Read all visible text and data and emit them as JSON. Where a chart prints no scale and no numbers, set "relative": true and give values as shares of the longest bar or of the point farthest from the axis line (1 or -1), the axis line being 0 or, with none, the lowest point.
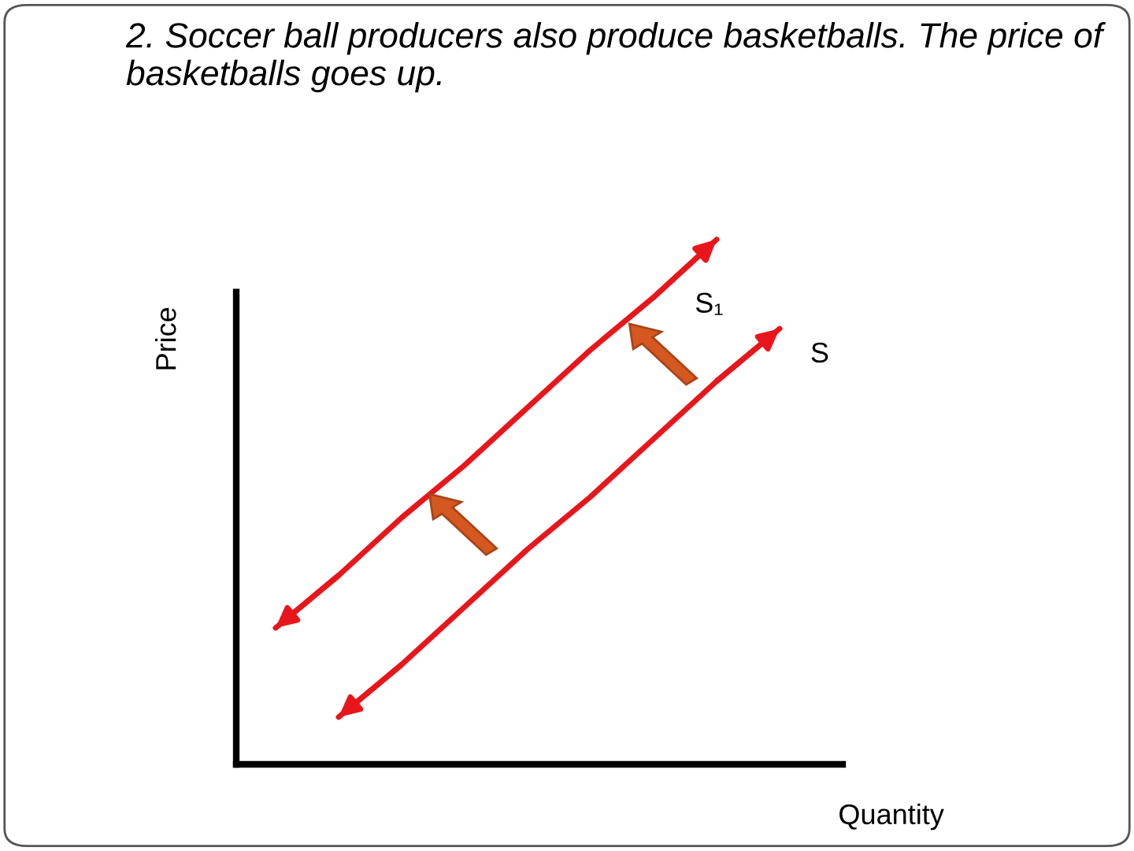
{
  "chart_data": {
    "type": "line",
    "title": "2. Soccer ball producers also produce basketballs. The price of basketballs goes up.",
    "xlabel": "Quantity",
    "ylabel": "Price",
    "relative": true,
    "line_style": "solid",
    "categories": [
      null,
      null,
      null,
      null,
      null,
      null,
      null,
      null,
      null
    ],
    "series": [
      {
        "name": "S₁",
        "color": "#e8161b",
        "values": [
          0.26,
          0.36,
          0.47,
          0.57,
          0.68,
          0.79,
          0.89,
          1.0,
          null
        ]
      },
      {
        "name": "S",
        "color": "#e8161b",
        "values": [
          null,
          0.09,
          0.19,
          0.3,
          0.41,
          0.51,
          0.62,
          0.73,
          0.83
        ]
      }
    ]
  }
}
